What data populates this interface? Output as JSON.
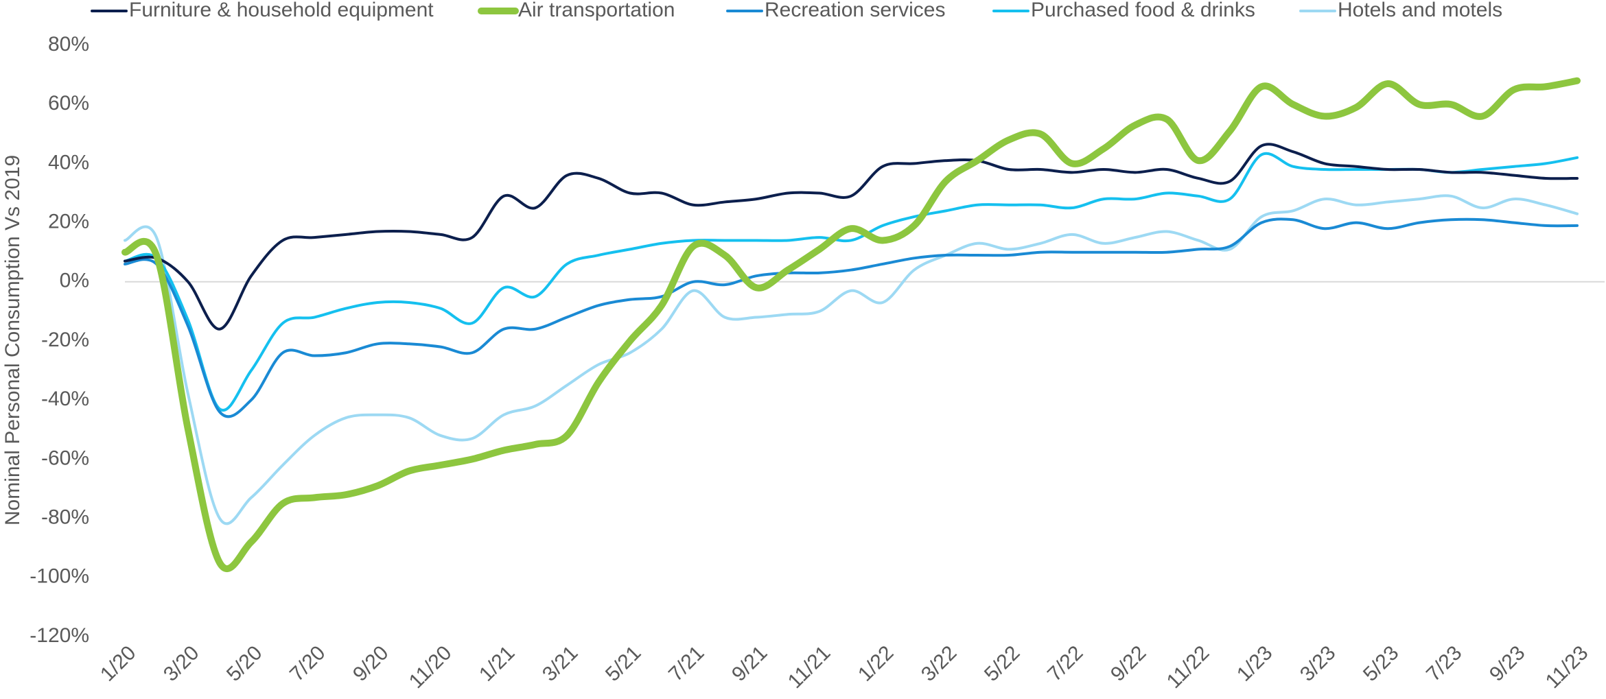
{
  "chart_data": {
    "type": "line",
    "y_label": "Nominal Personal Consumption Vs 2019",
    "categories": [
      "1/20",
      null,
      "3/20",
      null,
      "5/20",
      null,
      "7/20",
      null,
      "9/20",
      null,
      "11/20",
      null,
      "1/21",
      null,
      "3/21",
      null,
      "5/21",
      null,
      "7/21",
      null,
      "9/21",
      null,
      "11/21",
      null,
      "1/22",
      null,
      "3/22",
      null,
      "5/22",
      null,
      "7/22",
      null,
      "9/22",
      null,
      "11/22",
      null,
      "1/23",
      null,
      "3/23",
      null,
      "5/23",
      null,
      "7/23",
      null,
      "9/23",
      null,
      "11/23"
    ],
    "series": [
      {
        "name": "Furniture & household equipment",
        "color": "#0c1f4d",
        "values": [
          7,
          8,
          0,
          -16,
          2,
          14,
          15,
          16,
          17,
          17,
          16,
          15,
          29,
          25,
          36,
          35,
          30,
          30,
          26,
          27,
          28,
          30,
          30,
          29,
          39,
          40,
          41,
          41,
          38,
          38,
          37,
          38,
          37,
          38,
          35,
          34,
          46,
          44,
          40,
          39,
          38,
          38,
          37,
          37,
          36,
          35,
          35
        ]
      },
      {
        "name": "Air transportation",
        "color": "#8dc63f",
        "values": [
          10,
          9,
          -50,
          -95,
          -88,
          -75,
          -73,
          -72,
          -69,
          -64,
          -62,
          -60,
          -57,
          -55,
          -52,
          -34,
          -20,
          -8,
          12,
          9,
          -2,
          4,
          11,
          18,
          14,
          19,
          34,
          41,
          48,
          50,
          40,
          45,
          53,
          55,
          41,
          51,
          66,
          60,
          56,
          59,
          67,
          60,
          60,
          56,
          65,
          66,
          68
        ]
      },
      {
        "name": "Recreation services",
        "color": "#1a8ad4",
        "values": [
          6,
          6,
          -15,
          -44,
          -40,
          -24,
          -25,
          -24,
          -21,
          -21,
          -22,
          -24,
          -16,
          -16,
          -12,
          -8,
          -6,
          -5,
          0,
          -1,
          2,
          3,
          3,
          4,
          6,
          8,
          9,
          9,
          9,
          10,
          10,
          10,
          10,
          10,
          11,
          12,
          20,
          21,
          18,
          20,
          18,
          20,
          21,
          21,
          20,
          19,
          19
        ]
      },
      {
        "name": "Purchased food & drinks",
        "color": "#15c0ef",
        "values": [
          7,
          8,
          -13,
          -43,
          -30,
          -14,
          -12,
          -9,
          -7,
          -7,
          -9,
          -14,
          -2,
          -5,
          6,
          9,
          11,
          13,
          14,
          14,
          14,
          14,
          15,
          14,
          19,
          22,
          24,
          26,
          26,
          26,
          25,
          28,
          28,
          30,
          29,
          28,
          43,
          39,
          38,
          38,
          38,
          38,
          37,
          38,
          39,
          40,
          42
        ]
      },
      {
        "name": "Hotels and motels",
        "color": "#9dd9f3",
        "values": [
          14,
          15,
          -38,
          -80,
          -73,
          -62,
          -52,
          -46,
          -45,
          -46,
          -52,
          -53,
          -45,
          -42,
          -35,
          -28,
          -24,
          -16,
          -3,
          -12,
          -12,
          -11,
          -10,
          -3,
          -7,
          4,
          9,
          13,
          11,
          13,
          16,
          13,
          15,
          17,
          14,
          11,
          22,
          24,
          28,
          26,
          27,
          28,
          29,
          25,
          28,
          26,
          23
        ]
      }
    ],
    "ylim": [
      -120,
      80
    ],
    "yticks": [
      {
        "value": -120,
        "label": "-120%"
      },
      {
        "value": -100,
        "label": "-100%"
      },
      {
        "value": -80,
        "label": "-80%"
      },
      {
        "value": -60,
        "label": "-60%"
      },
      {
        "value": -40,
        "label": "-40%"
      },
      {
        "value": -20,
        "label": "-20%"
      },
      {
        "value": 0,
        "label": "0%"
      },
      {
        "value": 20,
        "label": "20%"
      },
      {
        "value": 40,
        "label": "40%"
      },
      {
        "value": 60,
        "label": "60%"
      },
      {
        "value": 80,
        "label": "80%"
      }
    ],
    "grid": false,
    "legend": "top"
  }
}
